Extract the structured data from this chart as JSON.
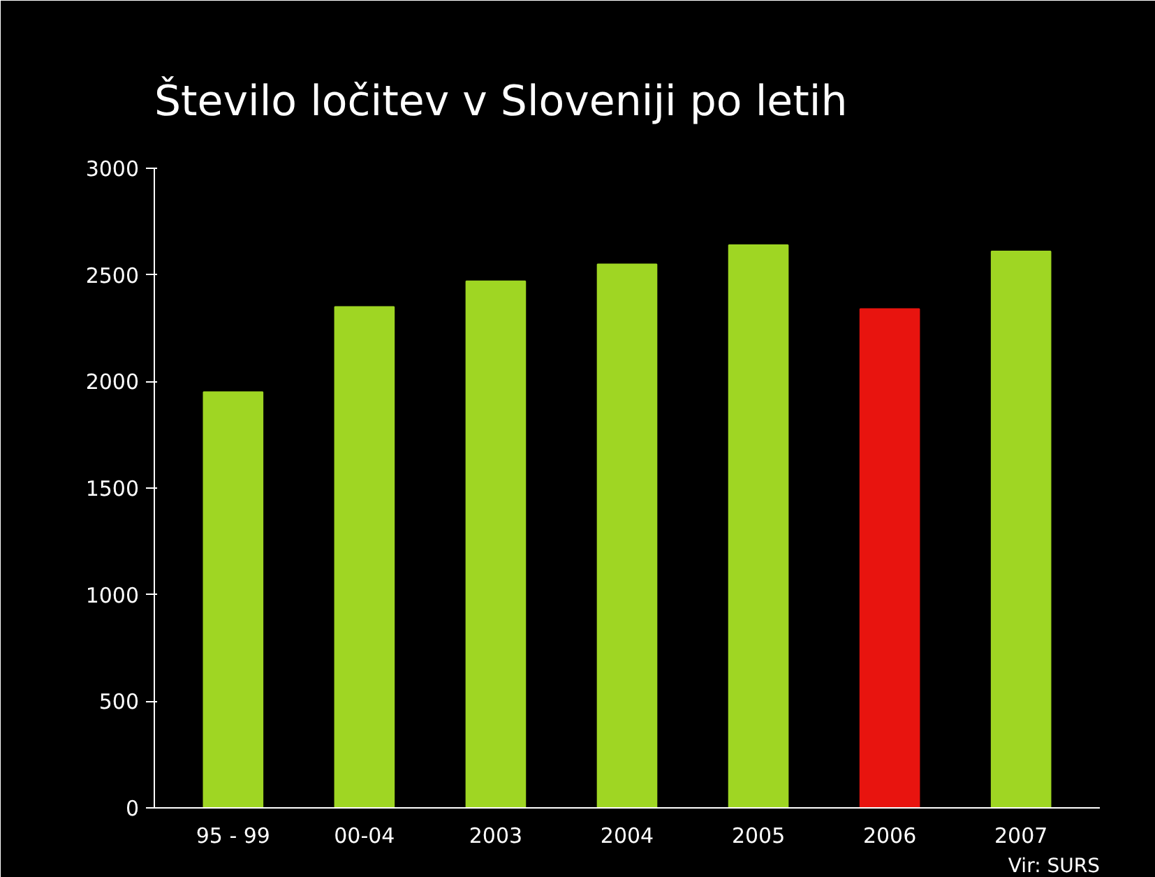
{
  "chart_data": {
    "type": "bar",
    "title": "Število ločitev v Sloveniji po letih",
    "categories": [
      "95 - 99",
      "00-04",
      "2003",
      "2004",
      "2005",
      "2006",
      "2007"
    ],
    "values": [
      1950,
      2350,
      2470,
      2550,
      2640,
      2340,
      2610
    ],
    "colors": [
      "#9fd623",
      "#9fd623",
      "#9fd623",
      "#9fd623",
      "#9fd623",
      "#e8140f",
      "#9fd623"
    ],
    "ylim": [
      0,
      3000
    ],
    "yticks": [
      0,
      500,
      1000,
      1500,
      2000,
      2500,
      3000
    ],
    "grid": false,
    "annotations": [
      "Vir: SURS"
    ]
  }
}
